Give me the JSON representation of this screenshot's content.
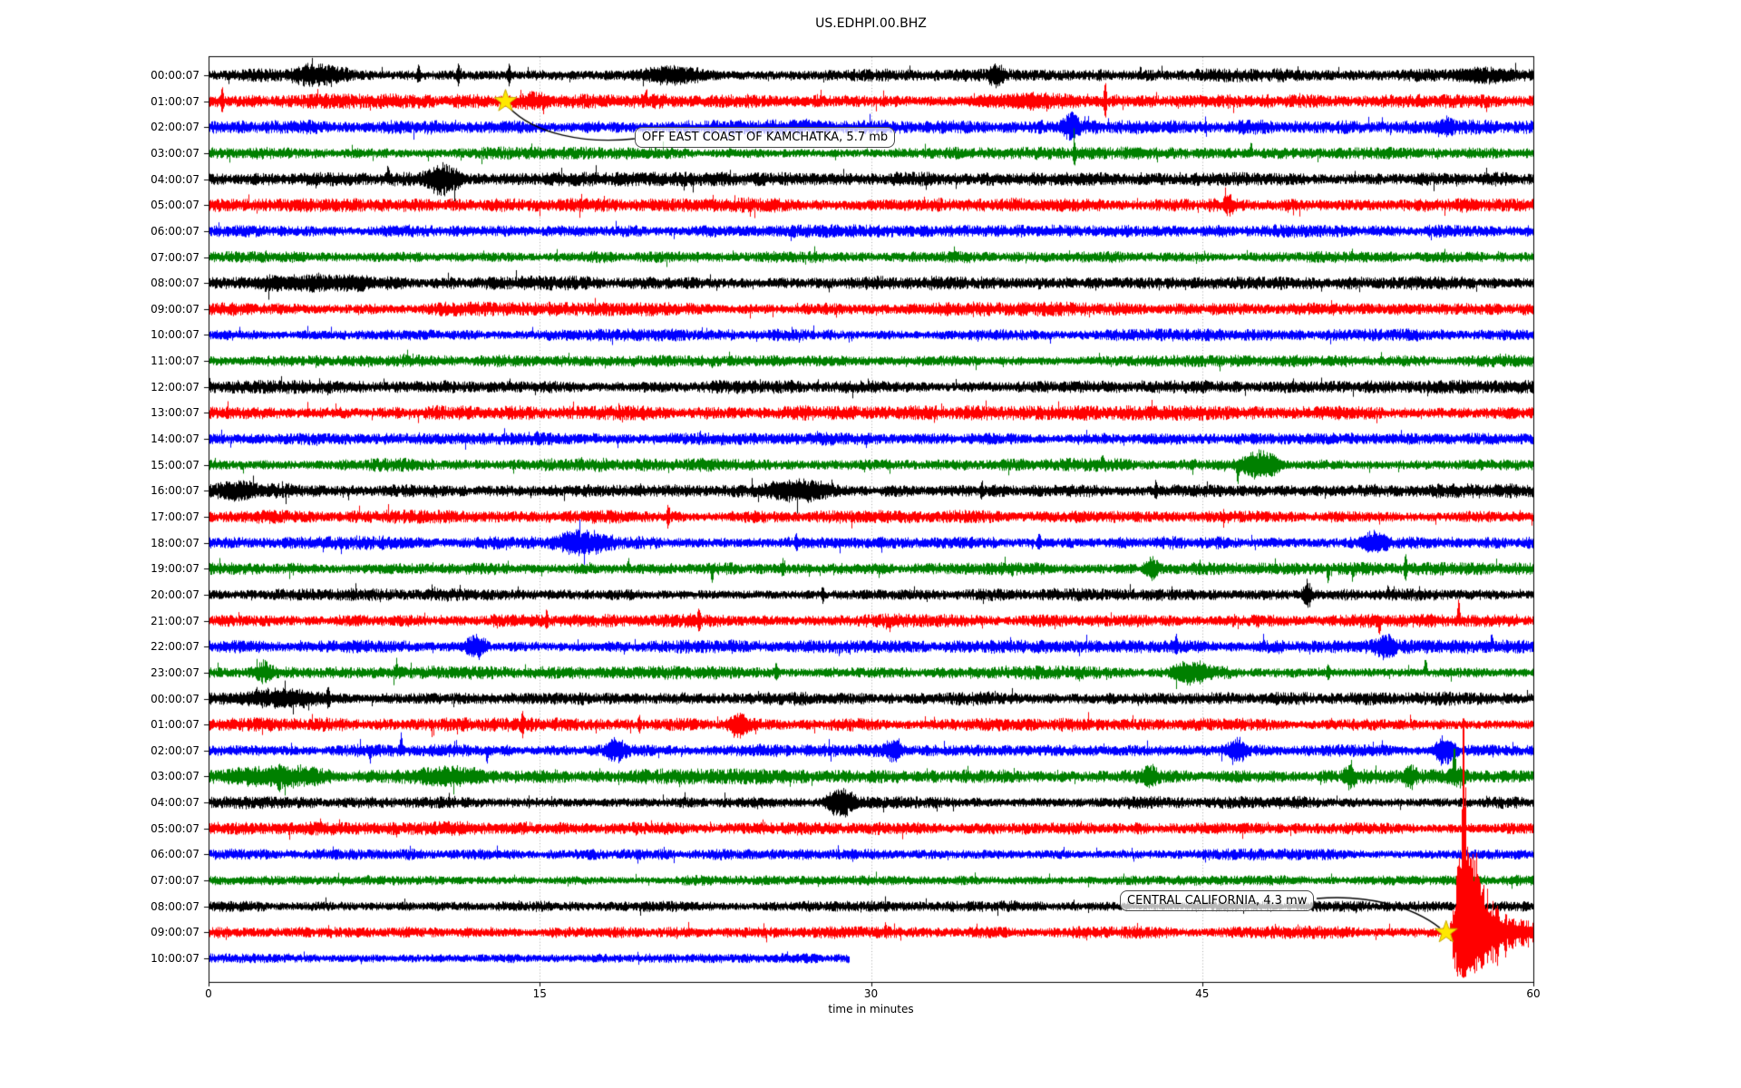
{
  "chart_data": {
    "type": "line",
    "variant": "helicorder-day-plot",
    "title": "US.EDHPI.00.BHZ",
    "xlabel": "time in minutes",
    "x_range": [
      0,
      60
    ],
    "x_ticks": [
      "0",
      "15",
      "30",
      "45",
      "60"
    ],
    "x_tick_values": [
      0,
      15,
      30,
      45,
      60
    ],
    "grid_minutes": [
      15,
      30,
      45
    ],
    "colors": {
      "black": "#000000",
      "red": "#ff0000",
      "blue": "#0000ff",
      "green": "#008000"
    },
    "accent_colors": {
      "star_fill": "#ffe800",
      "star_edge": "#c7a600",
      "grid": "#aaaaaa",
      "frame": "#000000"
    },
    "rows": [
      {
        "label": "00:00:07",
        "color": "black",
        "amp": 4.2
      },
      {
        "label": "01:00:07",
        "color": "red",
        "amp": 4.6
      },
      {
        "label": "02:00:07",
        "color": "blue",
        "amp": 4.6
      },
      {
        "label": "03:00:07",
        "color": "green",
        "amp": 4.0
      },
      {
        "label": "04:00:07",
        "color": "black",
        "amp": 4.4
      },
      {
        "label": "05:00:07",
        "color": "red",
        "amp": 4.8
      },
      {
        "label": "06:00:07",
        "color": "blue",
        "amp": 4.2
      },
      {
        "label": "07:00:07",
        "color": "green",
        "amp": 3.6
      },
      {
        "label": "08:00:07",
        "color": "black",
        "amp": 4.4
      },
      {
        "label": "09:00:07",
        "color": "red",
        "amp": 4.4
      },
      {
        "label": "10:00:07",
        "color": "blue",
        "amp": 3.8
      },
      {
        "label": "11:00:07",
        "color": "green",
        "amp": 3.8
      },
      {
        "label": "12:00:07",
        "color": "black",
        "amp": 4.2
      },
      {
        "label": "13:00:07",
        "color": "red",
        "amp": 4.6
      },
      {
        "label": "14:00:07",
        "color": "blue",
        "amp": 4.2
      },
      {
        "label": "15:00:07",
        "color": "green",
        "amp": 4.2
      },
      {
        "label": "16:00:07",
        "color": "black",
        "amp": 4.6
      },
      {
        "label": "17:00:07",
        "color": "red",
        "amp": 4.2
      },
      {
        "label": "18:00:07",
        "color": "blue",
        "amp": 4.4
      },
      {
        "label": "19:00:07",
        "color": "green",
        "amp": 4.0
      },
      {
        "label": "20:00:07",
        "color": "black",
        "amp": 4.2
      },
      {
        "label": "21:00:07",
        "color": "red",
        "amp": 4.4
      },
      {
        "label": "22:00:07",
        "color": "blue",
        "amp": 4.4
      },
      {
        "label": "23:00:07",
        "color": "green",
        "amp": 4.2
      },
      {
        "label": "00:00:07",
        "color": "black",
        "amp": 4.4
      },
      {
        "label": "01:00:07",
        "color": "red",
        "amp": 4.4
      },
      {
        "label": "02:00:07",
        "color": "blue",
        "amp": 4.2
      },
      {
        "label": "03:00:07",
        "color": "green",
        "amp": 4.8
      },
      {
        "label": "04:00:07",
        "color": "black",
        "amp": 4.2
      },
      {
        "label": "05:00:07",
        "color": "red",
        "amp": 4.4
      },
      {
        "label": "06:00:07",
        "color": "blue",
        "amp": 3.8
      },
      {
        "label": "07:00:07",
        "color": "green",
        "amp": 3.4
      },
      {
        "label": "08:00:07",
        "color": "black",
        "amp": 3.8
      },
      {
        "label": "09:00:07",
        "color": "red",
        "amp": 4.0
      },
      {
        "label": "10:00:07",
        "color": "blue",
        "amp": 3.6,
        "end_min": 29.0
      }
    ],
    "events": [
      {
        "row": 0,
        "type": "burst",
        "t0": 3.0,
        "t1": 7.0,
        "amp": 8
      },
      {
        "row": 0,
        "type": "spike",
        "t": 9.5,
        "dir": "both",
        "amp": 8
      },
      {
        "row": 0,
        "type": "spike",
        "t": 11.3,
        "dir": "both",
        "amp": 9
      },
      {
        "row": 0,
        "type": "spike",
        "t": 13.6,
        "dir": "both",
        "amp": 11
      },
      {
        "row": 0,
        "type": "burst",
        "t0": 18.5,
        "t1": 23.5,
        "amp": 6
      },
      {
        "row": 0,
        "type": "burst",
        "t0": 35.0,
        "t1": 36.3,
        "amp": 8
      },
      {
        "row": 0,
        "type": "burst",
        "t0": 55.5,
        "t1": 60.0,
        "amp": 5
      },
      {
        "row": 1,
        "type": "spike",
        "t": 0.6,
        "dir": "both",
        "amp": 13
      },
      {
        "row": 1,
        "type": "burst",
        "t0": 13.5,
        "t1": 15.8,
        "amp": 6
      },
      {
        "row": 1,
        "type": "spike",
        "t": 19.8,
        "dir": "up",
        "amp": 9
      },
      {
        "row": 1,
        "type": "burst",
        "t0": 33.0,
        "t1": 41.0,
        "amp": 4
      },
      {
        "row": 1,
        "type": "spike",
        "t": 40.6,
        "dir": "both",
        "amp": 17
      },
      {
        "row": 2,
        "type": "burst",
        "t0": 38.4,
        "t1": 39.7,
        "amp": 12
      },
      {
        "row": 2,
        "type": "burst",
        "t0": 55.4,
        "t1": 56.6,
        "amp": 6
      },
      {
        "row": 3,
        "type": "spike",
        "t": 39.2,
        "dir": "both",
        "amp": 11
      },
      {
        "row": 3,
        "type": "spike",
        "t": 47.2,
        "dir": "up",
        "amp": 9
      },
      {
        "row": 4,
        "type": "spike",
        "t": 8.1,
        "dir": "up",
        "amp": 8
      },
      {
        "row": 4,
        "type": "burst",
        "t0": 9.3,
        "t1": 11.9,
        "amp": 14
      },
      {
        "row": 5,
        "type": "burst",
        "t0": 45.8,
        "t1": 46.6,
        "amp": 6
      },
      {
        "row": 8,
        "type": "burst",
        "t0": 0.0,
        "t1": 10.0,
        "amp": 4
      },
      {
        "row": 15,
        "type": "spike",
        "t": 40.5,
        "dir": "up",
        "amp": 7
      },
      {
        "row": 15,
        "type": "burst",
        "t0": 46.2,
        "t1": 49.0,
        "amp": 13
      },
      {
        "row": 15,
        "type": "spike",
        "t": 46.6,
        "dir": "down",
        "amp": 17
      },
      {
        "row": 16,
        "type": "burst",
        "t0": 0.0,
        "t1": 2.5,
        "amp": 6
      },
      {
        "row": 16,
        "type": "burst",
        "t0": 24.0,
        "t1": 29.5,
        "amp": 7
      },
      {
        "row": 16,
        "type": "spike",
        "t": 35.0,
        "dir": "both",
        "amp": 8
      },
      {
        "row": 16,
        "type": "spike",
        "t": 42.9,
        "dir": "both",
        "amp": 8
      },
      {
        "row": 17,
        "type": "spike",
        "t": 20.8,
        "dir": "both",
        "amp": 10
      },
      {
        "row": 18,
        "type": "burst",
        "t0": 15.1,
        "t1": 18.7,
        "amp": 9
      },
      {
        "row": 18,
        "type": "spike",
        "t": 26.6,
        "dir": "both",
        "amp": 8
      },
      {
        "row": 18,
        "type": "spike",
        "t": 37.6,
        "dir": "both",
        "amp": 8
      },
      {
        "row": 18,
        "type": "burst",
        "t0": 51.8,
        "t1": 53.8,
        "amp": 9
      },
      {
        "row": 19,
        "type": "spike",
        "t": 19.0,
        "dir": "up",
        "amp": 8
      },
      {
        "row": 19,
        "type": "spike",
        "t": 22.8,
        "dir": "down",
        "amp": 11
      },
      {
        "row": 19,
        "type": "spike",
        "t": 26.0,
        "dir": "both",
        "amp": 7
      },
      {
        "row": 19,
        "type": "burst",
        "t0": 42.2,
        "t1": 43.2,
        "amp": 9
      },
      {
        "row": 19,
        "type": "spike",
        "t": 50.7,
        "dir": "down",
        "amp": 13
      },
      {
        "row": 19,
        "type": "spike",
        "t": 51.8,
        "dir": "down",
        "amp": 9
      },
      {
        "row": 19,
        "type": "spike",
        "t": 54.2,
        "dir": "both",
        "amp": 11
      },
      {
        "row": 20,
        "type": "spike",
        "t": 27.8,
        "dir": "both",
        "amp": 7
      },
      {
        "row": 20,
        "type": "burst",
        "t0": 49.4,
        "t1": 50.1,
        "amp": 12
      },
      {
        "row": 20,
        "type": "spike",
        "t": 53.4,
        "dir": "up",
        "amp": 8
      },
      {
        "row": 21,
        "type": "spike",
        "t": 15.3,
        "dir": "both",
        "amp": 8
      },
      {
        "row": 21,
        "type": "spike",
        "t": 22.2,
        "dir": "both",
        "amp": 9
      },
      {
        "row": 21,
        "type": "spike",
        "t": 53.0,
        "dir": "down",
        "amp": 12
      },
      {
        "row": 21,
        "type": "spike",
        "t": 56.6,
        "dir": "up",
        "amp": 22
      },
      {
        "row": 22,
        "type": "burst",
        "t0": 11.3,
        "t1": 12.8,
        "amp": 10
      },
      {
        "row": 22,
        "type": "spike",
        "t": 43.8,
        "dir": "both",
        "amp": 8
      },
      {
        "row": 22,
        "type": "burst",
        "t0": 52.5,
        "t1": 54.0,
        "amp": 10
      },
      {
        "row": 22,
        "type": "spike",
        "t": 58.1,
        "dir": "up",
        "amp": 10
      },
      {
        "row": 23,
        "type": "burst",
        "t0": 1.8,
        "t1": 3.2,
        "amp": 9
      },
      {
        "row": 23,
        "type": "spike",
        "t": 8.5,
        "dir": "up",
        "amp": 10
      },
      {
        "row": 23,
        "type": "spike",
        "t": 25.7,
        "dir": "both",
        "amp": 8
      },
      {
        "row": 23,
        "type": "burst",
        "t0": 43.1,
        "t1": 45.8,
        "amp": 8
      },
      {
        "row": 23,
        "type": "spike",
        "t": 50.7,
        "dir": "both",
        "amp": 8
      },
      {
        "row": 23,
        "type": "spike",
        "t": 55.1,
        "dir": "up",
        "amp": 14
      },
      {
        "row": 24,
        "type": "burst",
        "t0": 0.0,
        "t1": 6.2,
        "amp": 6
      },
      {
        "row": 24,
        "type": "spike",
        "t": 5.4,
        "dir": "both",
        "amp": 9
      },
      {
        "row": 25,
        "type": "spike",
        "t": 14.2,
        "dir": "both",
        "amp": 12
      },
      {
        "row": 25,
        "type": "spike",
        "t": 19.5,
        "dir": "both",
        "amp": 7
      },
      {
        "row": 25,
        "type": "burst",
        "t0": 23.3,
        "t1": 24.7,
        "amp": 10
      },
      {
        "row": 26,
        "type": "spike",
        "t": 7.3,
        "dir": "down",
        "amp": 10
      },
      {
        "row": 26,
        "type": "spike",
        "t": 8.7,
        "dir": "up",
        "amp": 15
      },
      {
        "row": 26,
        "type": "spike",
        "t": 12.6,
        "dir": "down",
        "amp": 10
      },
      {
        "row": 26,
        "type": "burst",
        "t0": 17.8,
        "t1": 19.1,
        "amp": 9
      },
      {
        "row": 26,
        "type": "burst",
        "t0": 30.3,
        "t1": 31.7,
        "amp": 9
      },
      {
        "row": 26,
        "type": "burst",
        "t0": 45.9,
        "t1": 47.3,
        "amp": 11
      },
      {
        "row": 26,
        "type": "burst",
        "t0": 55.2,
        "t1": 56.7,
        "amp": 11
      },
      {
        "row": 27,
        "type": "burst",
        "t0": 0.0,
        "t1": 6.5,
        "amp": 7
      },
      {
        "row": 27,
        "type": "spike",
        "t": 3.2,
        "dir": "both",
        "amp": 9
      },
      {
        "row": 27,
        "type": "burst",
        "t0": 8.4,
        "t1": 13.6,
        "amp": 6
      },
      {
        "row": 27,
        "type": "burst",
        "t0": 42.1,
        "t1": 43.1,
        "amp": 9
      },
      {
        "row": 27,
        "type": "burst",
        "t0": 51.2,
        "t1": 52.1,
        "amp": 8
      },
      {
        "row": 27,
        "type": "burst",
        "t0": 53.9,
        "t1": 54.9,
        "amp": 8
      },
      {
        "row": 27,
        "type": "spike",
        "t": 56.4,
        "dir": "up",
        "amp": 28
      },
      {
        "row": 27,
        "type": "burst",
        "t0": 55.9,
        "t1": 57.1,
        "amp": 7
      },
      {
        "row": 28,
        "type": "burst",
        "t0": 27.6,
        "t1": 29.7,
        "amp": 12
      },
      {
        "row": 33,
        "type": "quake",
        "t0": 56.2
      }
    ],
    "annotations": [
      {
        "id": "kamchatka",
        "text": "OFF EAST COAST OF KAMCHATKA, 5.7 mb",
        "row": 1,
        "minute": 13.45
      },
      {
        "id": "central-california",
        "text": "CENTRAL CALIFORNIA, 4.3 mw",
        "row": 33,
        "minute": 56.05
      }
    ]
  }
}
